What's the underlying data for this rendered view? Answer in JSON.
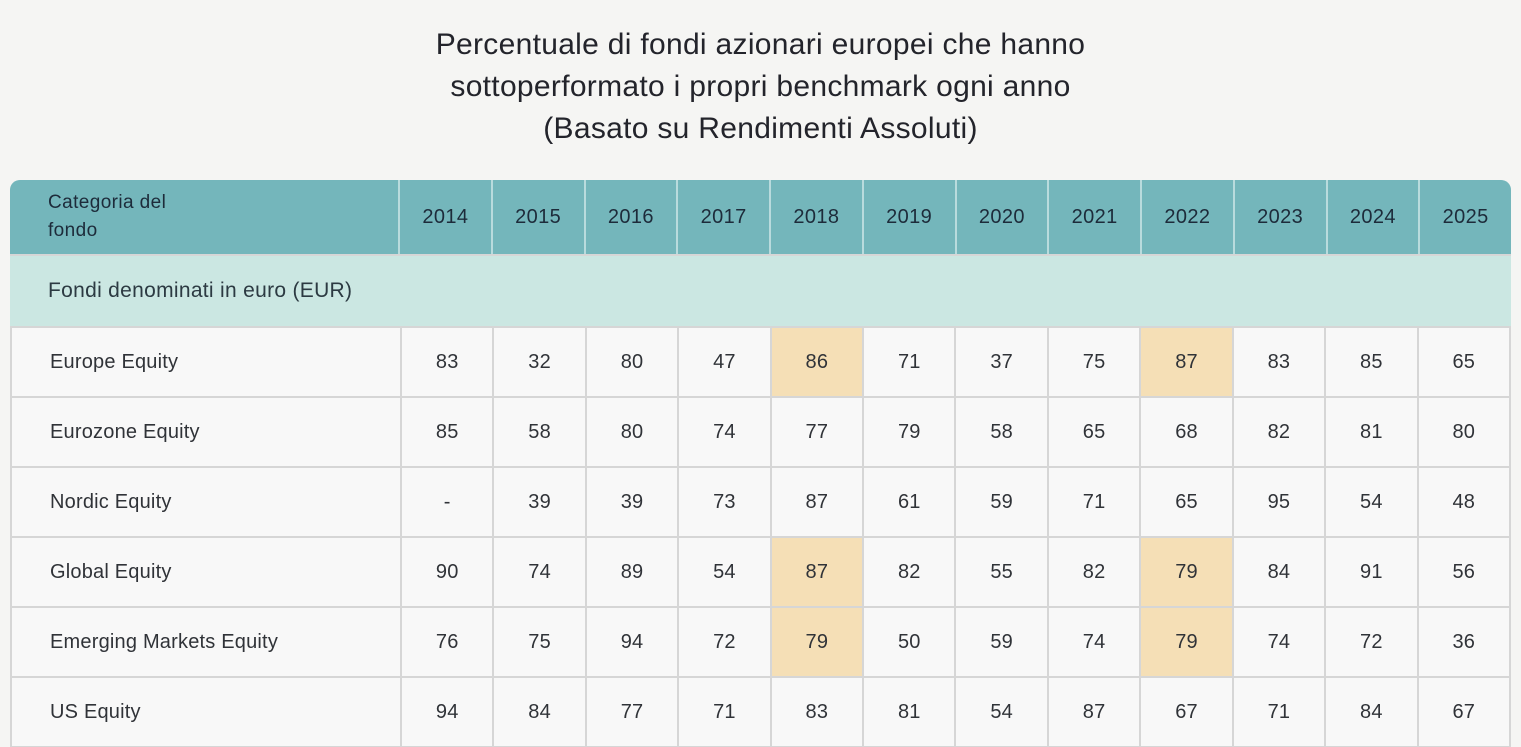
{
  "title": {
    "lines": [
      "Percentuale di fondi azionari europei che hanno",
      "sottoperformato i propri benchmark ogni anno",
      "(Basato su Rendimenti Assoluti)"
    ]
  },
  "colors": {
    "page_bg": "#f5f5f3",
    "header_bg": "#74b6bb",
    "header_divider": "#b9dbdd",
    "group_row_bg": "#cbe7e2",
    "cell_bg": "#f8f8f8",
    "grid_line": "#d6d6d6",
    "highlight": "#f5dfb6",
    "title_text": "#23242b",
    "header_text": "#1d2b3a",
    "body_text": "#303338"
  },
  "table": {
    "category_header": "Categoria del fondo",
    "years": [
      "2014",
      "2015",
      "2016",
      "2017",
      "2018",
      "2019",
      "2020",
      "2021",
      "2022",
      "2023",
      "2024",
      "2025"
    ],
    "group_header": "Fondi denominati in euro (EUR)",
    "rows": [
      {
        "label": "Europe Equity",
        "values": [
          "83",
          "32",
          "80",
          "47",
          "86",
          "71",
          "37",
          "75",
          "87",
          "83",
          "85",
          "65"
        ],
        "highlight_cols": [
          4,
          8
        ]
      },
      {
        "label": "Eurozone Equity",
        "values": [
          "85",
          "58",
          "80",
          "74",
          "77",
          "79",
          "58",
          "65",
          "68",
          "82",
          "81",
          "80"
        ],
        "highlight_cols": []
      },
      {
        "label": "Nordic Equity",
        "values": [
          "-",
          "39",
          "39",
          "73",
          "87",
          "61",
          "59",
          "71",
          "65",
          "95",
          "54",
          "48"
        ],
        "highlight_cols": []
      },
      {
        "label": "Global Equity",
        "values": [
          "90",
          "74",
          "89",
          "54",
          "87",
          "82",
          "55",
          "82",
          "79",
          "84",
          "91",
          "56"
        ],
        "highlight_cols": [
          4,
          8
        ]
      },
      {
        "label": "Emerging Markets Equity",
        "values": [
          "76",
          "75",
          "94",
          "72",
          "79",
          "50",
          "59",
          "74",
          "79",
          "74",
          "72",
          "36"
        ],
        "highlight_cols": [
          4,
          8
        ]
      },
      {
        "label": "US Equity",
        "values": [
          "94",
          "84",
          "77",
          "71",
          "83",
          "81",
          "54",
          "87",
          "67",
          "71",
          "84",
          "67"
        ],
        "highlight_cols": []
      }
    ]
  },
  "chart_data": {
    "type": "table",
    "title": "Percentuale di fondi azionari europei che hanno sottoperformato i propri benchmark ogni anno (Basato su Rendimenti Assoluti)",
    "group": "Fondi denominati in euro (EUR)",
    "columns": [
      "Categoria del fondo",
      "2014",
      "2015",
      "2016",
      "2017",
      "2018",
      "2019",
      "2020",
      "2021",
      "2022",
      "2023",
      "2024",
      "2025"
    ],
    "rows": [
      [
        "Europe Equity",
        83,
        32,
        80,
        47,
        86,
        71,
        37,
        75,
        87,
        83,
        85,
        65
      ],
      [
        "Eurozone Equity",
        85,
        58,
        80,
        74,
        77,
        79,
        58,
        65,
        68,
        82,
        81,
        80
      ],
      [
        "Nordic Equity",
        null,
        39,
        39,
        73,
        87,
        61,
        59,
        71,
        65,
        95,
        54,
        48
      ],
      [
        "Global Equity",
        90,
        74,
        89,
        54,
        87,
        82,
        55,
        82,
        79,
        84,
        91,
        56
      ],
      [
        "Emerging Markets Equity",
        76,
        75,
        94,
        72,
        79,
        50,
        59,
        74,
        79,
        74,
        72,
        36
      ],
      [
        "US Equity",
        94,
        84,
        77,
        71,
        83,
        81,
        54,
        87,
        67,
        71,
        84,
        67
      ]
    ],
    "missing_value_symbol": "-",
    "highlighted_cells": [
      {
        "row": "Europe Equity",
        "year": "2018",
        "value": 86
      },
      {
        "row": "Europe Equity",
        "year": "2022",
        "value": 87
      },
      {
        "row": "Global Equity",
        "year": "2018",
        "value": 87
      },
      {
        "row": "Global Equity",
        "year": "2022",
        "value": 79
      },
      {
        "row": "Emerging Markets Equity",
        "year": "2018",
        "value": 79
      },
      {
        "row": "Emerging Markets Equity",
        "year": "2022",
        "value": 79
      }
    ]
  }
}
